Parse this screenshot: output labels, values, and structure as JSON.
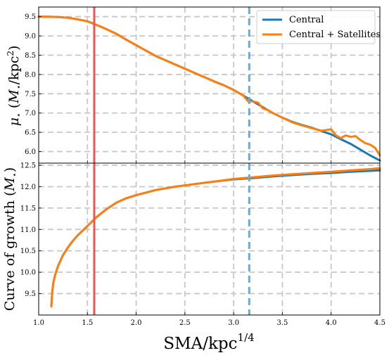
{
  "chart_data": [
    {
      "type": "line",
      "ylabel": "μ⋆ (M⋆/kpc²)",
      "xlim": [
        1.0,
        4.5
      ],
      "ylim": [
        5.7,
        9.75
      ],
      "xticks": [
        "1.0",
        "1.5",
        "2.0",
        "2.5",
        "3.0",
        "3.5",
        "4.0",
        "4.5"
      ],
      "yticks": [
        "6.0",
        "6.5",
        "7.0",
        "7.5",
        "8.0",
        "8.5",
        "9.0",
        "9.5"
      ],
      "grid": true,
      "legend_position": "top-right",
      "legend": [
        "Central",
        "Central + Satellites"
      ],
      "colors": {
        "central": "#1f77b4",
        "satellites": "#ff7f0e",
        "vline_solid": "#ee5555",
        "vline_dashed": "#6aaad6"
      },
      "vlines": [
        {
          "x": 1.57,
          "style": "solid"
        },
        {
          "x": 3.16,
          "style": "dashed"
        }
      ],
      "series": [
        {
          "name": "Central",
          "x": [
            1.0,
            1.1,
            1.2,
            1.3,
            1.4,
            1.5,
            1.6,
            1.7,
            1.8,
            1.9,
            2.0,
            2.1,
            2.2,
            2.3,
            2.4,
            2.5,
            2.6,
            2.7,
            2.8,
            2.9,
            3.0,
            3.1,
            3.2,
            3.3,
            3.4,
            3.5,
            3.6,
            3.7,
            3.8,
            3.9,
            4.0,
            4.1,
            4.2,
            4.3,
            4.4,
            4.5
          ],
          "values": [
            9.5,
            9.5,
            9.49,
            9.47,
            9.43,
            9.38,
            9.28,
            9.17,
            9.05,
            8.9,
            8.76,
            8.62,
            8.48,
            8.37,
            8.26,
            8.15,
            8.04,
            7.93,
            7.82,
            7.72,
            7.6,
            7.45,
            7.3,
            7.15,
            7.0,
            6.88,
            6.77,
            6.69,
            6.62,
            6.53,
            6.45,
            6.32,
            6.2,
            6.05,
            5.9,
            5.77
          ]
        },
        {
          "name": "Central + Satellites",
          "x": [
            1.0,
            1.1,
            1.2,
            1.3,
            1.4,
            1.5,
            1.6,
            1.7,
            1.8,
            1.9,
            2.0,
            2.1,
            2.2,
            2.3,
            2.4,
            2.5,
            2.6,
            2.7,
            2.8,
            2.9,
            3.0,
            3.1,
            3.15,
            3.2,
            3.25,
            3.3,
            3.35,
            3.4,
            3.5,
            3.6,
            3.7,
            3.8,
            3.9,
            4.0,
            4.05,
            4.1,
            4.15,
            4.2,
            4.25,
            4.3,
            4.35,
            4.4,
            4.45,
            4.5
          ],
          "values": [
            9.5,
            9.5,
            9.49,
            9.47,
            9.43,
            9.38,
            9.28,
            9.17,
            9.05,
            8.9,
            8.76,
            8.62,
            8.48,
            8.37,
            8.26,
            8.15,
            8.04,
            7.93,
            7.82,
            7.72,
            7.6,
            7.45,
            7.3,
            7.3,
            7.27,
            7.12,
            7.08,
            7.0,
            6.88,
            6.76,
            6.68,
            6.61,
            6.54,
            6.58,
            6.42,
            6.35,
            6.42,
            6.38,
            6.4,
            6.3,
            6.22,
            6.18,
            6.1,
            5.9
          ]
        }
      ]
    },
    {
      "type": "line",
      "xlabel": "SMA/kpc^1/4",
      "ylabel": "Curve of growth (M⋆)",
      "xlim": [
        1.0,
        4.5
      ],
      "ylim": [
        9.0,
        12.55
      ],
      "xticks": [
        "1.0",
        "1.5",
        "2.0",
        "2.5",
        "3.0",
        "3.5",
        "4.0",
        "4.5"
      ],
      "yticks": [
        "9.5",
        "10.0",
        "10.5",
        "11.0",
        "11.5",
        "12.0",
        "12.5"
      ],
      "grid": true,
      "colors": {
        "central": "#1f77b4",
        "satellites": "#ff7f0e",
        "vline_solid": "#ee5555",
        "vline_dashed": "#6aaad6"
      },
      "vlines": [
        {
          "x": 1.57,
          "style": "solid"
        },
        {
          "x": 3.16,
          "style": "dashed"
        }
      ],
      "series": [
        {
          "name": "Central",
          "x": [
            1.13,
            1.14,
            1.15,
            1.17,
            1.2,
            1.25,
            1.3,
            1.35,
            1.4,
            1.5,
            1.6,
            1.7,
            1.8,
            1.9,
            2.0,
            2.2,
            2.4,
            2.6,
            2.8,
            3.0,
            3.2,
            3.4,
            3.6,
            3.8,
            4.0,
            4.2,
            4.4,
            4.5
          ],
          "values": [
            9.2,
            9.55,
            9.75,
            9.95,
            10.15,
            10.4,
            10.58,
            10.73,
            10.86,
            11.08,
            11.3,
            11.48,
            11.63,
            11.73,
            11.8,
            11.92,
            12.0,
            12.06,
            12.12,
            12.17,
            12.2,
            12.24,
            12.27,
            12.3,
            12.32,
            12.35,
            12.37,
            12.38
          ]
        },
        {
          "name": "Central + Satellites",
          "x": [
            1.13,
            1.14,
            1.15,
            1.17,
            1.2,
            1.25,
            1.3,
            1.35,
            1.4,
            1.5,
            1.6,
            1.7,
            1.8,
            1.9,
            2.0,
            2.2,
            2.4,
            2.6,
            2.8,
            3.0,
            3.2,
            3.4,
            3.6,
            3.8,
            4.0,
            4.2,
            4.4,
            4.5
          ],
          "values": [
            9.2,
            9.55,
            9.75,
            9.95,
            10.15,
            10.4,
            10.58,
            10.73,
            10.86,
            11.08,
            11.3,
            11.48,
            11.63,
            11.73,
            11.8,
            11.92,
            12.0,
            12.06,
            12.12,
            12.18,
            12.22,
            12.26,
            12.29,
            12.32,
            12.35,
            12.38,
            12.41,
            12.43
          ]
        }
      ]
    }
  ]
}
